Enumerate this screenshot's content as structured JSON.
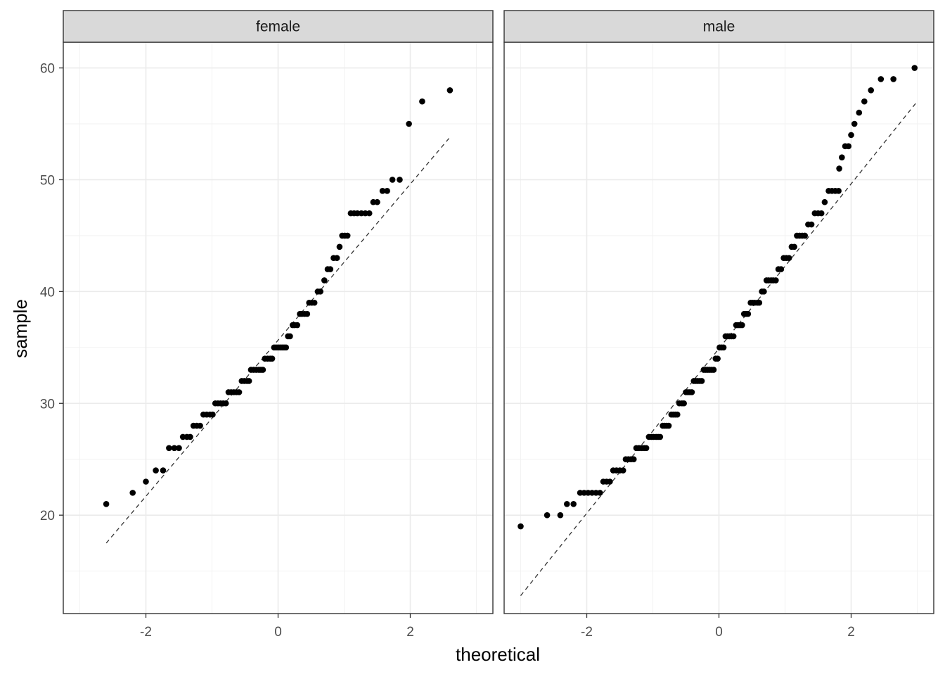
{
  "chart_data": {
    "type": "scatter",
    "subtype": "qq-plot-faceted",
    "xlabel": "theoretical",
    "ylabel": "sample",
    "xlim": [
      -3.25,
      3.25
    ],
    "ylim": [
      11.2,
      62.3
    ],
    "x_ticks": [
      -2,
      0,
      2
    ],
    "x_tick_labels": [
      "-2",
      "0",
      "2"
    ],
    "y_ticks": [
      20,
      30,
      40,
      50,
      60
    ],
    "y_tick_labels": [
      "20",
      "30",
      "40",
      "50",
      "60"
    ],
    "grid": true,
    "theme": "bw",
    "point_color": "#000000",
    "reference_line_style": "dashed",
    "panels": [
      {
        "label": "female",
        "reference_line": {
          "x": [
            -2.6,
            2.6
          ],
          "y": [
            17.5,
            53.8
          ]
        },
        "points": [
          [
            -2.6,
            21
          ],
          [
            -2.2,
            22
          ],
          [
            -2.0,
            23
          ],
          [
            -1.85,
            24
          ],
          [
            -1.74,
            24
          ],
          [
            -1.65,
            26
          ],
          [
            -1.57,
            26
          ],
          [
            -1.5,
            26
          ],
          [
            -1.44,
            27
          ],
          [
            -1.38,
            27
          ],
          [
            -1.33,
            27
          ],
          [
            -1.28,
            28
          ],
          [
            -1.23,
            28
          ],
          [
            -1.18,
            28
          ],
          [
            -1.13,
            29
          ],
          [
            -1.08,
            29
          ],
          [
            -1.03,
            29
          ],
          [
            -0.99,
            29
          ],
          [
            -0.95,
            30
          ],
          [
            -0.91,
            30
          ],
          [
            -0.87,
            30
          ],
          [
            -0.83,
            30
          ],
          [
            -0.79,
            30
          ],
          [
            -0.75,
            31
          ],
          [
            -0.71,
            31
          ],
          [
            -0.67,
            31
          ],
          [
            -0.63,
            31
          ],
          [
            -0.59,
            31
          ],
          [
            -0.55,
            32
          ],
          [
            -0.51,
            32
          ],
          [
            -0.47,
            32
          ],
          [
            -0.44,
            32
          ],
          [
            -0.41,
            33
          ],
          [
            -0.37,
            33
          ],
          [
            -0.33,
            33
          ],
          [
            -0.29,
            33
          ],
          [
            -0.26,
            33
          ],
          [
            -0.23,
            33
          ],
          [
            -0.2,
            34
          ],
          [
            -0.16,
            34
          ],
          [
            -0.12,
            34
          ],
          [
            -0.09,
            34
          ],
          [
            -0.06,
            35
          ],
          [
            -0.03,
            35
          ],
          [
            0.0,
            35
          ],
          [
            0.03,
            35
          ],
          [
            0.06,
            35
          ],
          [
            0.09,
            35
          ],
          [
            0.12,
            35
          ],
          [
            0.15,
            36
          ],
          [
            0.18,
            36
          ],
          [
            0.22,
            37
          ],
          [
            0.25,
            37
          ],
          [
            0.29,
            37
          ],
          [
            0.33,
            38
          ],
          [
            0.36,
            38
          ],
          [
            0.4,
            38
          ],
          [
            0.44,
            38
          ],
          [
            0.47,
            39
          ],
          [
            0.51,
            39
          ],
          [
            0.55,
            39
          ],
          [
            0.6,
            40
          ],
          [
            0.64,
            40
          ],
          [
            0.7,
            41
          ],
          [
            0.75,
            42
          ],
          [
            0.79,
            42
          ],
          [
            0.84,
            43
          ],
          [
            0.89,
            43
          ],
          [
            0.93,
            44
          ],
          [
            0.97,
            45
          ],
          [
            1.01,
            45
          ],
          [
            1.05,
            45
          ],
          [
            1.1,
            47
          ],
          [
            1.15,
            47
          ],
          [
            1.2,
            47
          ],
          [
            1.26,
            47
          ],
          [
            1.32,
            47
          ],
          [
            1.38,
            47
          ],
          [
            1.44,
            48
          ],
          [
            1.5,
            48
          ],
          [
            1.58,
            49
          ],
          [
            1.65,
            49
          ],
          [
            1.73,
            50
          ],
          [
            1.84,
            50
          ],
          [
            1.98,
            55
          ],
          [
            2.18,
            57
          ],
          [
            2.6,
            58
          ]
        ]
      },
      {
        "label": "male",
        "reference_line": {
          "x": [
            -3.0,
            3.0
          ],
          "y": [
            12.8,
            57.0
          ]
        },
        "points": [
          [
            -3.0,
            19
          ],
          [
            -2.6,
            20
          ],
          [
            -2.4,
            20
          ],
          [
            -2.3,
            21
          ],
          [
            -2.2,
            21
          ],
          [
            -2.1,
            22
          ],
          [
            -2.04,
            22
          ],
          [
            -1.98,
            22
          ],
          [
            -1.92,
            22
          ],
          [
            -1.86,
            22
          ],
          [
            -1.8,
            22
          ],
          [
            -1.75,
            23
          ],
          [
            -1.7,
            23
          ],
          [
            -1.65,
            23
          ],
          [
            -1.6,
            24
          ],
          [
            -1.55,
            24
          ],
          [
            -1.5,
            24
          ],
          [
            -1.45,
            24
          ],
          [
            -1.41,
            25
          ],
          [
            -1.37,
            25
          ],
          [
            -1.33,
            25
          ],
          [
            -1.29,
            25
          ],
          [
            -1.25,
            26
          ],
          [
            -1.21,
            26
          ],
          [
            -1.17,
            26
          ],
          [
            -1.13,
            26
          ],
          [
            -1.1,
            26
          ],
          [
            -1.06,
            27
          ],
          [
            -1.02,
            27
          ],
          [
            -0.99,
            27
          ],
          [
            -0.95,
            27
          ],
          [
            -0.92,
            27
          ],
          [
            -0.89,
            27
          ],
          [
            -0.85,
            28
          ],
          [
            -0.82,
            28
          ],
          [
            -0.79,
            28
          ],
          [
            -0.76,
            28
          ],
          [
            -0.72,
            29
          ],
          [
            -0.69,
            29
          ],
          [
            -0.66,
            29
          ],
          [
            -0.63,
            29
          ],
          [
            -0.6,
            30
          ],
          [
            -0.56,
            30
          ],
          [
            -0.53,
            30
          ],
          [
            -0.5,
            31
          ],
          [
            -0.47,
            31
          ],
          [
            -0.44,
            31
          ],
          [
            -0.41,
            31
          ],
          [
            -0.38,
            32
          ],
          [
            -0.35,
            32
          ],
          [
            -0.32,
            32
          ],
          [
            -0.29,
            32
          ],
          [
            -0.26,
            32
          ],
          [
            -0.23,
            33
          ],
          [
            -0.2,
            33
          ],
          [
            -0.17,
            33
          ],
          [
            -0.14,
            33
          ],
          [
            -0.11,
            33
          ],
          [
            -0.08,
            33
          ],
          [
            -0.05,
            34
          ],
          [
            -0.02,
            34
          ],
          [
            0.01,
            35
          ],
          [
            0.04,
            35
          ],
          [
            0.07,
            35
          ],
          [
            0.1,
            36
          ],
          [
            0.13,
            36
          ],
          [
            0.16,
            36
          ],
          [
            0.19,
            36
          ],
          [
            0.22,
            36
          ],
          [
            0.26,
            37
          ],
          [
            0.29,
            37
          ],
          [
            0.32,
            37
          ],
          [
            0.35,
            37
          ],
          [
            0.38,
            38
          ],
          [
            0.41,
            38
          ],
          [
            0.44,
            38
          ],
          [
            0.48,
            39
          ],
          [
            0.51,
            39
          ],
          [
            0.54,
            39
          ],
          [
            0.58,
            39
          ],
          [
            0.61,
            39
          ],
          [
            0.65,
            40
          ],
          [
            0.68,
            40
          ],
          [
            0.72,
            41
          ],
          [
            0.75,
            41
          ],
          [
            0.79,
            41
          ],
          [
            0.82,
            41
          ],
          [
            0.86,
            41
          ],
          [
            0.9,
            42
          ],
          [
            0.94,
            42
          ],
          [
            0.98,
            43
          ],
          [
            1.02,
            43
          ],
          [
            1.06,
            43
          ],
          [
            1.1,
            44
          ],
          [
            1.14,
            44
          ],
          [
            1.18,
            45
          ],
          [
            1.22,
            45
          ],
          [
            1.26,
            45
          ],
          [
            1.3,
            45
          ],
          [
            1.35,
            46
          ],
          [
            1.4,
            46
          ],
          [
            1.45,
            47
          ],
          [
            1.5,
            47
          ],
          [
            1.55,
            47
          ],
          [
            1.6,
            48
          ],
          [
            1.66,
            49
          ],
          [
            1.71,
            49
          ],
          [
            1.76,
            49
          ],
          [
            1.81,
            49
          ],
          [
            1.82,
            51
          ],
          [
            1.86,
            52
          ],
          [
            1.91,
            53
          ],
          [
            1.96,
            53
          ],
          [
            2.0,
            54
          ],
          [
            2.05,
            55
          ],
          [
            2.12,
            56
          ],
          [
            2.2,
            57
          ],
          [
            2.3,
            58
          ],
          [
            2.45,
            59
          ],
          [
            2.64,
            59
          ],
          [
            2.96,
            60
          ]
        ]
      }
    ]
  }
}
